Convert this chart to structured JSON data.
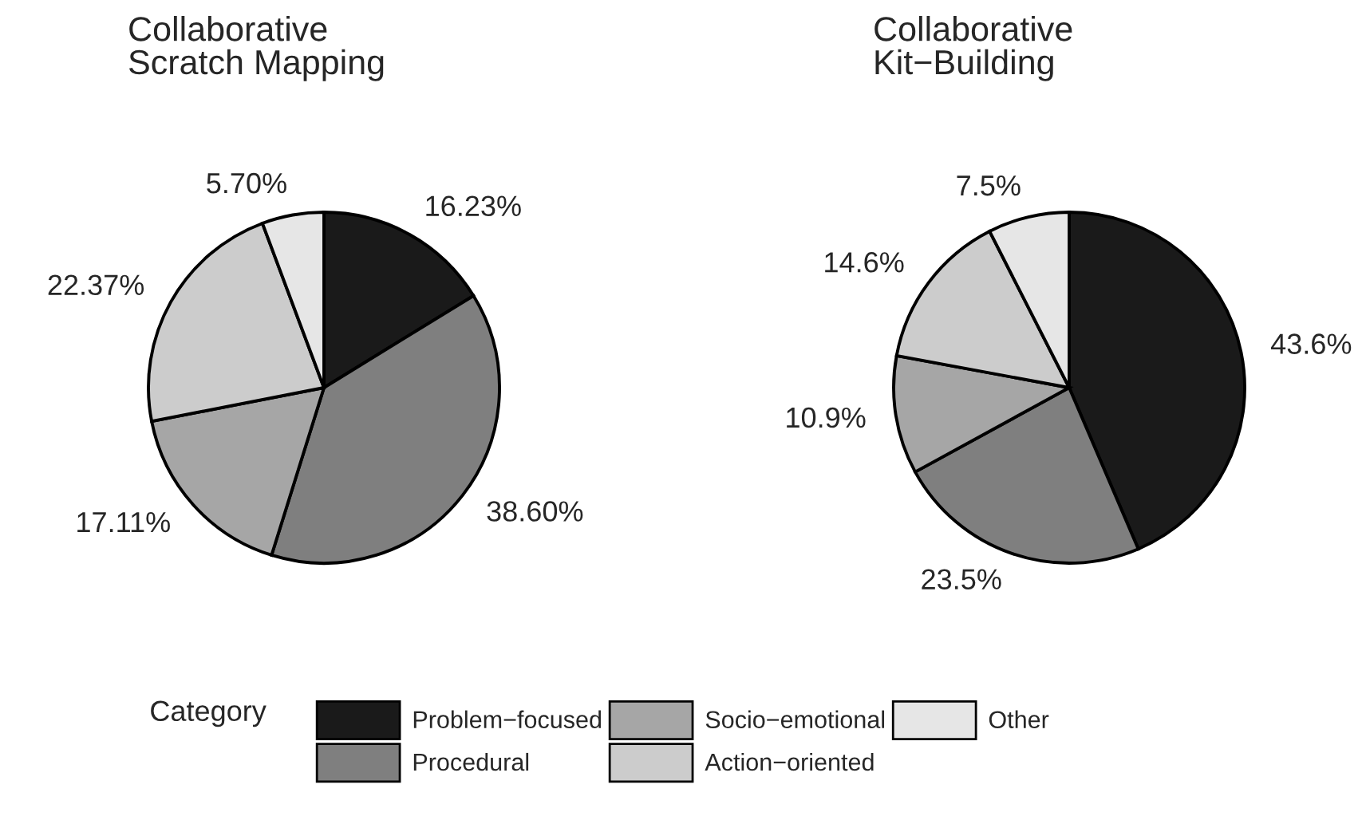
{
  "chart_data": [
    {
      "type": "pie",
      "title": "Collaborative\nScratch Mapping",
      "categories": [
        "Problem−focused",
        "Procedural",
        "Socio−emotional",
        "Action−oriented",
        "Other"
      ],
      "values": [
        16.23,
        38.6,
        17.11,
        22.37,
        5.7
      ],
      "value_labels": [
        "16.23%",
        "38.60%",
        "17.11%",
        "22.37%",
        "5.70%"
      ],
      "colors": [
        "#1a1a1a",
        "#7f7f7f",
        "#a6a6a6",
        "#cccccc",
        "#e6e6e6"
      ],
      "legend": "bottom",
      "legend_title": "Category"
    },
    {
      "type": "pie",
      "title": "Collaborative\nKit−Building",
      "categories": [
        null,
        null,
        null,
        null,
        null
      ],
      "values": [
        43.6,
        23.5,
        10.9,
        14.6,
        7.5
      ],
      "value_labels": [
        "43.6%",
        "23.5%",
        "10.9%",
        "14.6%",
        "7.5%"
      ],
      "colors": [
        "#1a1a1a",
        "#7f7f7f",
        "#a6a6a6",
        "#cccccc",
        "#e6e6e6"
      ]
    }
  ]
}
